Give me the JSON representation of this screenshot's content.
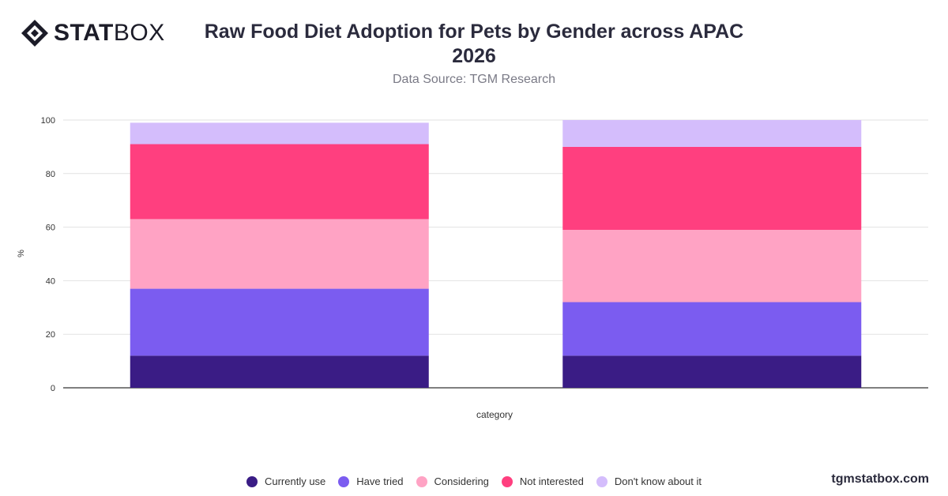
{
  "header": {
    "logo_bold": "STAT",
    "logo_light": "BOX",
    "title": "Raw Food Diet Adoption for Pets by Gender across APAC 2026",
    "subtitle": "Data Source: TGM Research"
  },
  "footer": {
    "brand": "tgmstatbox.com"
  },
  "colors": {
    "currently_use": "#3a1c85",
    "have_tried": "#7b5cf0",
    "considering": "#ffa3c4",
    "not_interested": "#ff3f7f",
    "dont_know": "#d4bdfc",
    "grid": "#e2e2e2",
    "axis": "#333333"
  },
  "chart_data": {
    "type": "bar",
    "stacked": true,
    "title": "Raw Food Diet Adoption for Pets by Gender across APAC 2026",
    "subtitle": "Data Source: TGM Research",
    "xlabel": "category",
    "ylabel": "%",
    "ylim": [
      0,
      100
    ],
    "yticks": [
      0,
      20,
      40,
      60,
      80,
      100
    ],
    "grid": true,
    "legend_position": "bottom",
    "categories": [
      "",
      ""
    ],
    "series": [
      {
        "name": "Currently use",
        "color_key": "currently_use",
        "values": [
          12,
          12
        ]
      },
      {
        "name": "Have tried",
        "color_key": "have_tried",
        "values": [
          25,
          20
        ]
      },
      {
        "name": "Considering",
        "color_key": "considering",
        "values": [
          26,
          27
        ]
      },
      {
        "name": "Not interested",
        "color_key": "not_interested",
        "values": [
          28,
          31
        ]
      },
      {
        "name": "Don't know about it",
        "color_key": "dont_know",
        "values": [
          8,
          10
        ]
      }
    ]
  }
}
